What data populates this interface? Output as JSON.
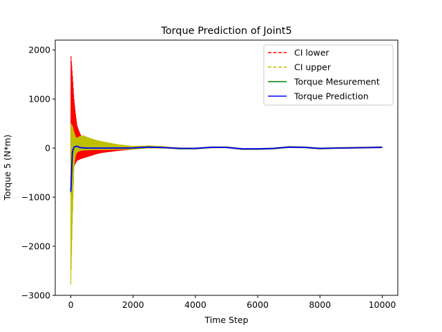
{
  "chart_data": {
    "type": "line",
    "title": "Torque Prediction of Joint5",
    "xlabel": "Time Step",
    "ylabel": "Torque 5 (N*m)",
    "xlim": [
      -500,
      10500
    ],
    "ylim": [
      -3000,
      2200
    ],
    "xticks": [
      0,
      2000,
      4000,
      6000,
      8000,
      10000
    ],
    "yticks": [
      -3000,
      -2000,
      -1000,
      0,
      1000,
      2000
    ],
    "xtick_labels": [
      "0",
      "2000",
      "4000",
      "6000",
      "8000",
      "10000"
    ],
    "ytick_labels": [
      "−3000",
      "−2000",
      "−1000",
      "0",
      "1000",
      "2000"
    ],
    "grid": false,
    "legend_position": "top-right",
    "series": [
      {
        "name": "CI lower",
        "style": "dashed",
        "color": "#ff0000",
        "x": [
          0,
          50,
          100,
          150,
          200,
          300,
          400,
          600,
          800,
          1000,
          1500,
          2000,
          2500,
          3000,
          4000,
          10000
        ],
        "env_low": [
          -950,
          -600,
          -380,
          -300,
          -250,
          -220,
          -200,
          -160,
          -120,
          -90,
          -50,
          -20,
          -15,
          -10,
          -10,
          -10
        ],
        "env_high": [
          1920,
          1500,
          1000,
          700,
          450,
          280,
          180,
          100,
          60,
          40,
          25,
          20,
          20,
          15,
          10,
          10
        ]
      },
      {
        "name": "CI upper",
        "style": "dashed",
        "color": "#bfbf00",
        "x": [
          0,
          50,
          100,
          150,
          200,
          300,
          400,
          600,
          800,
          1000,
          1500,
          2000,
          2500,
          3000,
          4000,
          10000
        ],
        "env_low": [
          -2780,
          -1500,
          -400,
          -150,
          -80,
          -50,
          -40,
          -35,
          -30,
          -30,
          -25,
          -20,
          -15,
          -10,
          -10,
          -10
        ],
        "env_high": [
          500,
          450,
          330,
          230,
          200,
          240,
          250,
          200,
          160,
          130,
          70,
          35,
          25,
          20,
          15,
          15
        ]
      },
      {
        "name": "Torque Mesurement",
        "style": "solid",
        "color": "#008000",
        "x": [
          0,
          50,
          100,
          200,
          300,
          500,
          1000,
          2000,
          2500,
          3000,
          3500,
          4000,
          4500,
          5000,
          5500,
          6000,
          6500,
          7000,
          7500,
          8000,
          8500,
          9000,
          9500,
          10000
        ],
        "y": [
          -900,
          -100,
          20,
          40,
          10,
          0,
          0,
          0,
          20,
          10,
          -10,
          -10,
          15,
          15,
          -20,
          -20,
          -10,
          20,
          15,
          -10,
          0,
          5,
          10,
          15
        ]
      },
      {
        "name": "Torque Prediction",
        "style": "solid",
        "color": "#0000ff",
        "x": [
          0,
          50,
          100,
          200,
          300,
          500,
          1000,
          2000,
          2500,
          3000,
          3500,
          4000,
          4500,
          5000,
          5500,
          6000,
          6500,
          7000,
          7500,
          8000,
          8500,
          9000,
          9500,
          10000
        ],
        "y": [
          -880,
          -80,
          20,
          40,
          10,
          0,
          0,
          5,
          20,
          10,
          -5,
          -5,
          15,
          15,
          -15,
          -15,
          -5,
          20,
          15,
          -5,
          0,
          5,
          10,
          15
        ]
      }
    ]
  }
}
